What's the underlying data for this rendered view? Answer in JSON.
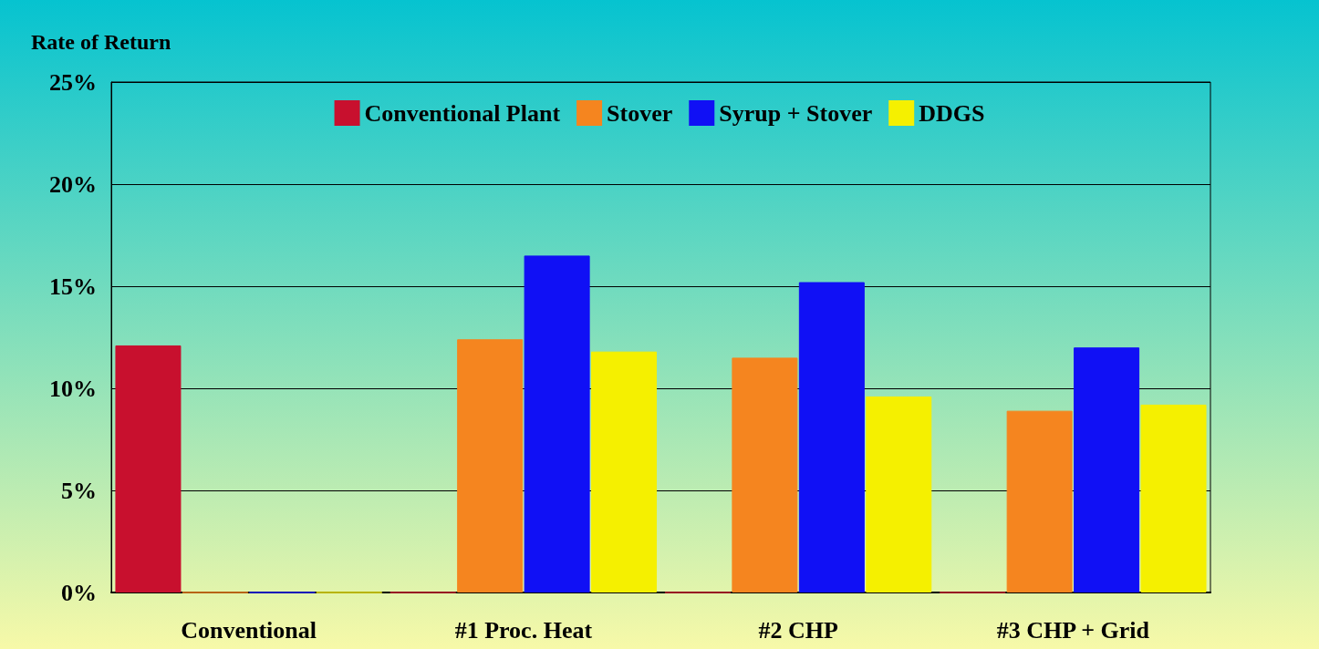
{
  "chart_data": {
    "type": "bar",
    "ylabel": "Rate of Return",
    "categories": [
      "Conventional",
      "#1 Proc. Heat",
      "#2 CHP",
      "#3 CHP + Grid"
    ],
    "series": [
      {
        "name": "Conventional Plant",
        "color": "#c8102e",
        "values": [
          12.1,
          0,
          0,
          0
        ]
      },
      {
        "name": "Stover",
        "color": "#f5851f",
        "values": [
          0,
          12.4,
          11.5,
          8.9
        ]
      },
      {
        "name": "Syrup + Stover",
        "color": "#1010f5",
        "values": [
          0,
          16.5,
          15.2,
          12.0
        ]
      },
      {
        "name": "DDGS",
        "color": "#f5f000",
        "values": [
          0,
          11.8,
          9.6,
          9.2
        ]
      }
    ],
    "ylim": [
      0,
      25
    ],
    "yticks": [
      {
        "value": 0,
        "label": "0%"
      },
      {
        "value": 5,
        "label": "5%"
      },
      {
        "value": 10,
        "label": "10%"
      },
      {
        "value": 15,
        "label": "15%"
      },
      {
        "value": 20,
        "label": "20%"
      },
      {
        "value": 25,
        "label": "25%"
      }
    ],
    "grid": "y",
    "legend": "top"
  }
}
